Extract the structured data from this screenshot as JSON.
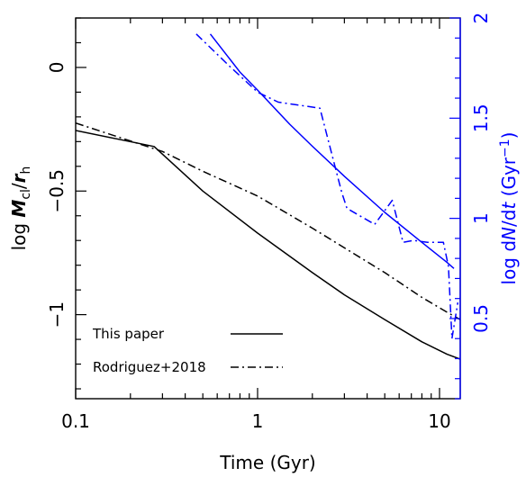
{
  "chart_data": {
    "type": "line",
    "x_axis": {
      "label": "Time (Gyr)",
      "scale": "log",
      "range": [
        0.1,
        13
      ],
      "ticks": [
        {
          "value": 0.1,
          "label": "0.1"
        },
        {
          "value": 1,
          "label": "1"
        },
        {
          "value": 10,
          "label": "10"
        }
      ]
    },
    "y_axis_left": {
      "label_parts": [
        "log ",
        "M",
        "cl",
        "/",
        "r",
        "h"
      ],
      "range": [
        -1.34,
        0.2
      ],
      "ticks": [
        {
          "value": 0,
          "label": "0"
        },
        {
          "value": -0.5,
          "label": "−0.5"
        },
        {
          "value": -1,
          "label": "−1"
        }
      ],
      "color": "#000000"
    },
    "y_axis_right": {
      "label_parts": [
        "log d",
        "N",
        "/d",
        "t",
        " (Gyr",
        "−1",
        ")"
      ],
      "range": [
        0.1,
        2.0
      ],
      "ticks": [
        {
          "value": 0.5,
          "label": "0.5"
        },
        {
          "value": 1,
          "label": "1"
        },
        {
          "value": 1.5,
          "label": "1.5"
        },
        {
          "value": 2,
          "label": "2"
        }
      ],
      "color": "#0000ff"
    },
    "series": [
      {
        "name": "This paper",
        "axis": "left",
        "style": "solid",
        "color": "#000000",
        "x": [
          0.1,
          0.27,
          0.5,
          1,
          2,
          3,
          5,
          8,
          11,
          13
        ],
        "y": [
          -0.255,
          -0.32,
          -0.5,
          -0.67,
          -0.83,
          -0.92,
          -1.02,
          -1.11,
          -1.16,
          -1.18
        ]
      },
      {
        "name": "Rodriguez+2018",
        "axis": "left",
        "style": "dashdot",
        "color": "#000000",
        "x": [
          0.1,
          0.3,
          0.5,
          1,
          2,
          3,
          5,
          8,
          11,
          13
        ],
        "y": [
          -0.225,
          -0.34,
          -0.42,
          -0.52,
          -0.65,
          -0.73,
          -0.83,
          -0.93,
          -0.99,
          -1.02
        ]
      },
      {
        "axis": "right",
        "style": "solid",
        "color": "#0000ff",
        "x": [
          0.55,
          0.8,
          1,
          1.5,
          2,
          3,
          5,
          8,
          11,
          12
        ],
        "y": [
          1.92,
          1.73,
          1.64,
          1.47,
          1.36,
          1.21,
          1.03,
          0.88,
          0.78,
          0.75
        ]
      },
      {
        "axis": "right",
        "style": "dashdot",
        "color": "#0000ff",
        "x": [
          0.46,
          0.7,
          1,
          1.3,
          2.2,
          2.9,
          3.1,
          4.4,
          5.5,
          6.3,
          7.2,
          8.6,
          9.5,
          10.5,
          11.2,
          11.7,
          12.2,
          12.6
        ],
        "y": [
          1.92,
          1.76,
          1.63,
          1.58,
          1.55,
          1.13,
          1.05,
          0.97,
          1.09,
          0.88,
          0.89,
          0.88,
          0.88,
          0.88,
          0.76,
          0.4,
          0.5,
          0.58
        ]
      }
    ],
    "legend": {
      "placement": "bottom-left",
      "entries": [
        {
          "label": "This paper",
          "style": "solid"
        },
        {
          "label": "Rodriguez+2018",
          "style": "dashdot"
        }
      ]
    },
    "grid": false
  }
}
